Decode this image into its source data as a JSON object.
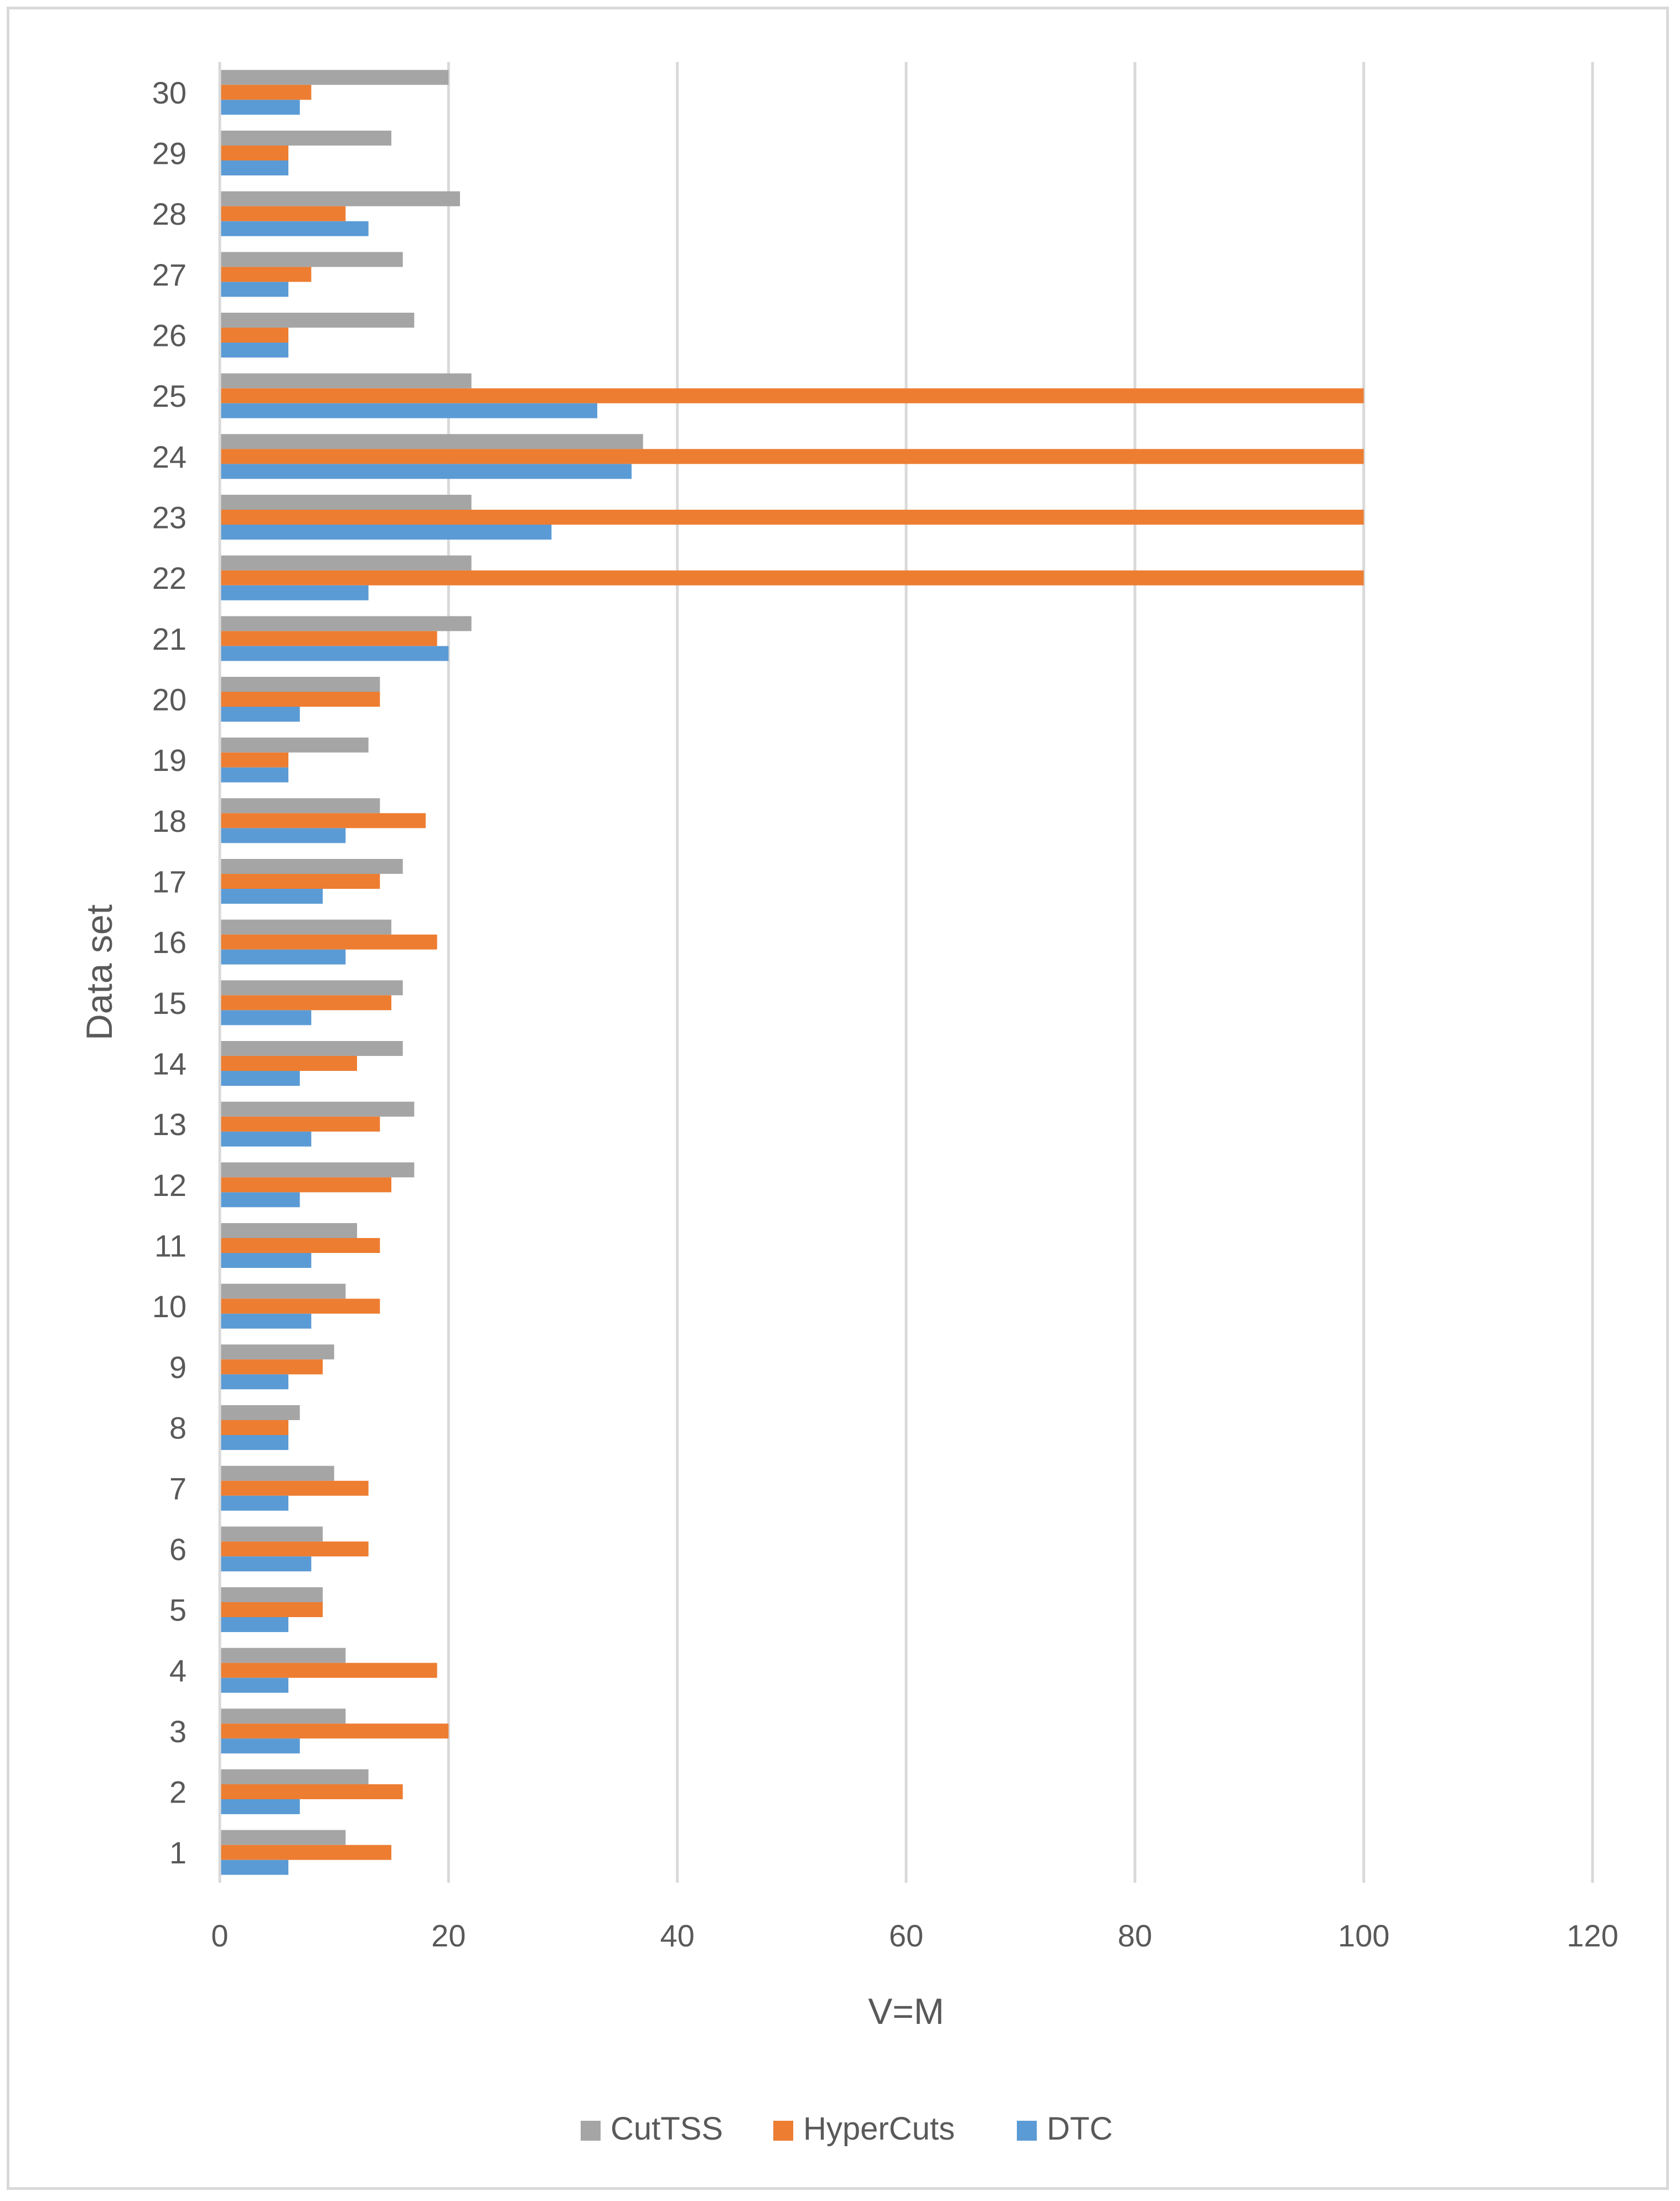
{
  "chart_data": {
    "type": "bar",
    "orientation": "horizontal",
    "title": "",
    "xlabel": "V=M",
    "ylabel": "Data set",
    "xlim": [
      0,
      120
    ],
    "xticks": [
      0,
      20,
      40,
      60,
      80,
      100,
      120
    ],
    "grid": "vertical",
    "legend_position": "bottom",
    "categories": [
      "1",
      "2",
      "3",
      "4",
      "5",
      "6",
      "7",
      "8",
      "9",
      "10",
      "11",
      "12",
      "13",
      "14",
      "15",
      "16",
      "17",
      "18",
      "19",
      "20",
      "21",
      "22",
      "23",
      "24",
      "25",
      "26",
      "27",
      "28",
      "29",
      "30"
    ],
    "series": [
      {
        "name": "DTC",
        "color": "#5b9bd5",
        "values": [
          6,
          7,
          7,
          6,
          6,
          8,
          6,
          6,
          6,
          8,
          8,
          7,
          8,
          7,
          8,
          11,
          9,
          11,
          6,
          7,
          20,
          13,
          29,
          36,
          33,
          6,
          6,
          13,
          6,
          7
        ]
      },
      {
        "name": "HyperCuts",
        "color": "#ed7d31",
        "values": [
          15,
          16,
          20,
          19,
          9,
          13,
          13,
          6,
          9,
          14,
          14,
          15,
          14,
          12,
          15,
          19,
          14,
          18,
          6,
          14,
          19,
          100,
          100,
          100,
          100,
          6,
          8,
          11,
          6,
          8
        ]
      },
      {
        "name": "CutTSS",
        "color": "#a5a5a5",
        "values": [
          11,
          13,
          11,
          11,
          9,
          9,
          10,
          7,
          10,
          11,
          12,
          17,
          17,
          16,
          16,
          15,
          16,
          14,
          13,
          14,
          22,
          22,
          22,
          37,
          22,
          17,
          16,
          21,
          15,
          20
        ]
      }
    ],
    "legend_order": [
      "CutTSS",
      "HyperCuts",
      "DTC"
    ]
  }
}
